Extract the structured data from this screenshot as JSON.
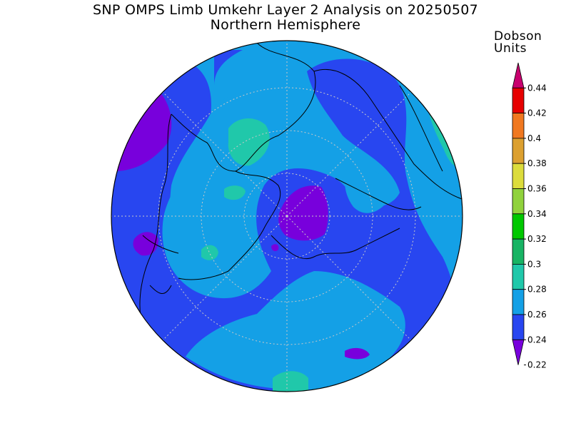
{
  "title": "SNP OMPS Limb Umkehr Layer 2 Analysis on 20250507",
  "subtitle": "Northern Hemisphere",
  "legend": {
    "units_line1": "Dobson",
    "units_line2": "Units",
    "ticks": [
      "0.44",
      "0.42",
      "0.4",
      "0.38",
      "0.36",
      "0.34",
      "0.32",
      "0.3",
      "0.28",
      "0.26",
      "0.24",
      "0.22"
    ],
    "colors": [
      "#c8006e",
      "#e60000",
      "#f07820",
      "#dca030",
      "#dcdc3c",
      "#90d23c",
      "#00c800",
      "#18b464",
      "#20c8aa",
      "#14a0e6",
      "#2846f0",
      "#7800dc"
    ]
  },
  "map": {
    "projection": "polar stereographic",
    "hemisphere": "Northern",
    "background_color": "#14a0e6",
    "grid": "dotted graticule"
  }
}
